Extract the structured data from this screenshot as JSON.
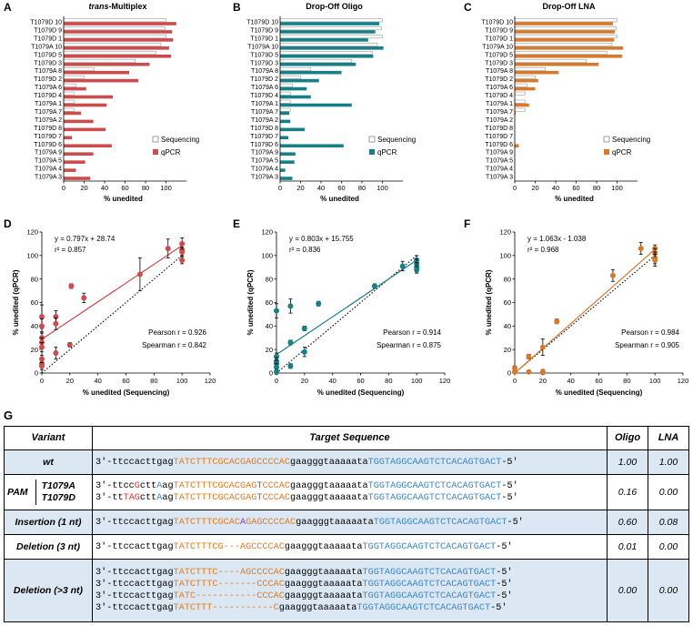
{
  "colors": {
    "multiplex": "#cc4b4b",
    "oligo": "#177f86",
    "lna": "#d7792c",
    "dotted": "#000000",
    "shade": "#dbe8f4"
  },
  "panels": {
    "A": {
      "letter": "A",
      "title_italic": "trans",
      "title_rest": "-Multiplex",
      "xlabel": "% unedited",
      "legend": [
        "Sequencing",
        "qPCR"
      ],
      "color_key": "multiplex"
    },
    "B": {
      "letter": "B",
      "title": "Drop-Off Oligo",
      "xlabel": "% unedited",
      "legend": [
        "Sequencing",
        "qPCR"
      ],
      "color_key": "oligo"
    },
    "C": {
      "letter": "C",
      "title": "Drop-Off LNA",
      "xlabel": "% unedited",
      "legend": [
        "Sequencing",
        "qPCR"
      ],
      "color_key": "lna"
    }
  },
  "chart_data": [
    {
      "type": "bar",
      "panel": "A",
      "title": "trans-Multiplex",
      "xlabel": "% unedited",
      "xlim": [
        0,
        120
      ],
      "xticks": [
        0,
        20,
        40,
        60,
        80,
        100
      ],
      "categories": [
        "T1079D 10",
        "T1079D 9",
        "T1079D 1",
        "T1079A 10",
        "T1079D 5",
        "T1079D 3",
        "T1079A 8",
        "T1079D 2",
        "T1079A 6",
        "T1079D 4",
        "T1079A 1",
        "T1079A 7",
        "T1079A 2",
        "T1079D 8",
        "T1079D 7",
        "T1079D 6",
        "T1079A 9",
        "T1079A 5",
        "T1079A 4",
        "T1079A 3"
      ],
      "series": [
        {
          "name": "Sequencing",
          "values": [
            100,
            99,
            100,
            95,
            90,
            70,
            30,
            20,
            12,
            10,
            10,
            10,
            0,
            0,
            0,
            0,
            0,
            0,
            0,
            0
          ]
        },
        {
          "name": "qPCR",
          "values": [
            110,
            106,
            107,
            103,
            105,
            84,
            64,
            73,
            22,
            48,
            42,
            17,
            29,
            41,
            8,
            47,
            29,
            21,
            12,
            26
          ]
        }
      ]
    },
    {
      "type": "bar",
      "panel": "B",
      "title": "Drop-Off Oligo",
      "xlabel": "% unedited",
      "xlim": [
        0,
        120
      ],
      "xticks": [
        0,
        20,
        40,
        60,
        80,
        100
      ],
      "categories": [
        "T1079D 10",
        "T1079D 9",
        "T1079D 1",
        "T1079A 10",
        "T1079D 5",
        "T1079D 3",
        "T1079A 8",
        "T1079D 2",
        "T1079A 6",
        "T1079D 4",
        "T1079A 1",
        "T1079A 7",
        "T1079A 2",
        "T1079D 8",
        "T1079D 7",
        "T1079D 6",
        "T1079A 9",
        "T1079A 5",
        "T1079A 4",
        "T1079A 3"
      ],
      "series": [
        {
          "name": "Sequencing",
          "values": [
            100,
            99,
            100,
            95,
            90,
            70,
            30,
            20,
            12,
            10,
            10,
            10,
            0,
            0,
            0,
            0,
            0,
            0,
            0,
            0
          ]
        },
        {
          "name": "qPCR",
          "values": [
            97,
            93,
            86,
            101,
            91,
            74,
            60,
            38,
            26,
            30,
            70,
            9,
            10,
            24,
            8,
            62,
            15,
            14,
            5,
            12
          ]
        }
      ]
    },
    {
      "type": "bar",
      "panel": "C",
      "title": "Drop-Off LNA",
      "xlabel": "% unedited",
      "xlim": [
        0,
        120
      ],
      "xticks": [
        0,
        20,
        40,
        60,
        80,
        100
      ],
      "categories": [
        "T1079D 10",
        "T1079D 9",
        "T1079D 1",
        "T1079A 10",
        "T1079D 5",
        "T1079D 3",
        "T1079A 8",
        "T1079D 2",
        "T1079A 6",
        "T1079D 4",
        "T1079A 1",
        "T1079A 7",
        "T1079A 2",
        "T1079D 8",
        "T1079D 7",
        "T1079D 6",
        "T1079A 9",
        "T1079A 5",
        "T1079A 4",
        "T1079A 3"
      ],
      "series": [
        {
          "name": "Sequencing",
          "values": [
            100,
            99,
            100,
            95,
            90,
            70,
            30,
            20,
            12,
            10,
            10,
            10,
            0,
            0,
            0,
            0,
            0,
            0,
            0,
            0
          ]
        },
        {
          "name": "qPCR",
          "values": [
            96,
            98,
            97,
            106,
            105,
            82,
            43,
            23,
            20,
            0,
            14,
            1,
            0,
            0,
            0,
            4,
            0,
            0,
            0,
            0
          ]
        }
      ]
    },
    {
      "type": "scatter",
      "panel": "D",
      "xlabel": "% unedited (Sequencing)",
      "ylabel": "% unedited (qPCR)",
      "xlim": [
        0,
        120
      ],
      "ylim": [
        0,
        120
      ],
      "xticks": [
        0,
        20,
        40,
        60,
        80,
        100,
        120
      ],
      "yticks": [
        0,
        20,
        40,
        60,
        80,
        100,
        120
      ],
      "points": [
        [
          0,
          48
        ],
        [
          0,
          40
        ],
        [
          0,
          30
        ],
        [
          0,
          26
        ],
        [
          0,
          22
        ],
        [
          0,
          8
        ],
        [
          0,
          12
        ],
        [
          0,
          6
        ],
        [
          10,
          48
        ],
        [
          10,
          42
        ],
        [
          10,
          17
        ],
        [
          20,
          24
        ],
        [
          21,
          74
        ],
        [
          30,
          64
        ],
        [
          70,
          84
        ],
        [
          90,
          106
        ],
        [
          100,
          105
        ],
        [
          100,
          110
        ],
        [
          100,
          103
        ],
        [
          100,
          96
        ]
      ],
      "errors": [
        [
          0,
          10
        ],
        [
          0,
          6
        ],
        [
          0,
          5
        ],
        [
          0,
          4
        ],
        [
          0,
          4
        ],
        [
          0,
          3
        ],
        [
          0,
          3
        ],
        [
          0,
          3
        ],
        [
          10,
          5
        ],
        [
          10,
          5
        ],
        [
          10,
          5
        ],
        [
          20,
          2
        ],
        [
          21,
          2
        ],
        [
          30,
          4
        ],
        [
          70,
          14
        ],
        [
          90,
          8
        ],
        [
          100,
          5
        ],
        [
          100,
          5
        ],
        [
          100,
          4
        ],
        [
          100,
          3
        ]
      ],
      "fit": {
        "slope": 0.797,
        "intercept": 28.74
      },
      "equation": "y = 0.797x + 28.74",
      "r2": "r² = 0.857",
      "pearson": "Pearson r = 0.926",
      "spearman": "Spearman r = 0.842"
    },
    {
      "type": "scatter",
      "panel": "E",
      "xlabel": "% unedited (Sequencing)",
      "ylabel": "% unedited (qPCR)",
      "xlim": [
        0,
        120
      ],
      "ylim": [
        0,
        120
      ],
      "xticks": [
        0,
        20,
        40,
        60,
        80,
        100,
        120
      ],
      "yticks": [
        0,
        20,
        40,
        60,
        80,
        100,
        120
      ],
      "points": [
        [
          0,
          53
        ],
        [
          0,
          14
        ],
        [
          0,
          10
        ],
        [
          0,
          8
        ],
        [
          0,
          5
        ],
        [
          0,
          1
        ],
        [
          10,
          57
        ],
        [
          10,
          26
        ],
        [
          10,
          6
        ],
        [
          20,
          38
        ],
        [
          20,
          18
        ],
        [
          30,
          59
        ],
        [
          70,
          74
        ],
        [
          90,
          91
        ],
        [
          100,
          96
        ],
        [
          100,
          93
        ],
        [
          100,
          90
        ],
        [
          100,
          88
        ]
      ],
      "errors": [
        [
          0,
          6
        ],
        [
          0,
          3
        ],
        [
          0,
          3
        ],
        [
          0,
          3
        ],
        [
          0,
          3
        ],
        [
          0,
          2
        ],
        [
          10,
          6
        ],
        [
          10,
          2
        ],
        [
          10,
          2
        ],
        [
          20,
          2
        ],
        [
          20,
          4
        ],
        [
          30,
          2
        ],
        [
          70,
          2
        ],
        [
          90,
          4
        ],
        [
          100,
          4
        ],
        [
          100,
          4
        ],
        [
          100,
          4
        ],
        [
          100,
          3
        ]
      ],
      "fit": {
        "slope": 0.803,
        "intercept": 15.755
      },
      "equation": "y = 0.803x + 15.755",
      "r2": "r² = 0.836",
      "pearson": "Pearson r = 0.914",
      "spearman": "Spearman r = 0.875"
    },
    {
      "type": "scatter",
      "panel": "F",
      "xlabel": "% unedited (Sequencing)",
      "ylabel": "% unedited (qPCR)",
      "xlim": [
        0,
        120
      ],
      "ylim": [
        0,
        120
      ],
      "xticks": [
        0,
        20,
        40,
        60,
        80,
        100,
        120
      ],
      "yticks": [
        0,
        20,
        40,
        60,
        80,
        100,
        120
      ],
      "points": [
        [
          0,
          4
        ],
        [
          0,
          1
        ],
        [
          10,
          14
        ],
        [
          10,
          1
        ],
        [
          20,
          22
        ],
        [
          20,
          1
        ],
        [
          30,
          44
        ],
        [
          70,
          83
        ],
        [
          90,
          106
        ],
        [
          100,
          106
        ],
        [
          100,
          102
        ],
        [
          100,
          98
        ],
        [
          100,
          96
        ]
      ],
      "errors": [
        [
          0,
          2
        ],
        [
          0,
          1
        ],
        [
          10,
          2
        ],
        [
          10,
          1
        ],
        [
          20,
          7
        ],
        [
          20,
          2
        ],
        [
          30,
          2
        ],
        [
          70,
          5
        ],
        [
          90,
          5
        ],
        [
          100,
          3
        ],
        [
          100,
          4
        ],
        [
          100,
          5
        ],
        [
          100,
          5
        ]
      ],
      "fit": {
        "slope": 1.063,
        "intercept": -1.038
      },
      "equation": "y = 1.063x - 1.038",
      "r2": "r² = 0.968",
      "pearson": "Pearson r = 0.984",
      "spearman": "Spearman r = 0.905"
    }
  ],
  "table": {
    "letter": "G",
    "headers": {
      "variant": "Variant",
      "target": "Target Sequence",
      "oligo": "Oligo",
      "lna": "LNA"
    },
    "wt": {
      "label": "wt",
      "oligo": "1.00",
      "lna": "1.00",
      "parts": [
        "3′-ttccacttgag",
        "TATCTTTCGCACGAGCCCCAC",
        "gaagggtaaaaata",
        "TGGTAGGCAAGTCTCACAGTGACT",
        "-5′"
      ]
    },
    "pam": {
      "label": "PAM",
      "sub1": "T1079A",
      "sub2": "T1079D",
      "oligo": "0.16",
      "lna": "0.00",
      "line1": [
        "3′-ttcc",
        "G",
        "ctt",
        "A",
        "ag",
        "TATCTTTCGCACGAG",
        "T",
        "CCCAC",
        "gaagggtaaaaata",
        "TGGTAGGCAAGTCTCACAGTGACT",
        "-5′"
      ],
      "line2": [
        "3′-tt",
        "TAG",
        "ctt",
        "A",
        "ag",
        "TATCTTTCGCACGAG",
        "T",
        "CCCAC",
        "gaagggtaaaaata",
        "TGGTAGGCAAGTCTCACAGTGACT",
        "-5′"
      ]
    },
    "ins": {
      "label": "Insertion (1 nt)",
      "oligo": "0.60",
      "lna": "0.08",
      "parts": [
        "3′-ttccacttgag",
        "TATCTTTCGCAC",
        "A",
        "GAGCCCCAC",
        "gaagggtaaaaata",
        "TGGTAGGCAAGTCTCACAGTGACT",
        "-5′"
      ]
    },
    "del3": {
      "label": "Deletion (3 nt)",
      "oligo": "0.01",
      "lna": "0.00",
      "parts": [
        "3′-ttccacttgag",
        "TATCTTTCG---AGCCCCAC",
        "gaagggtaaaaata",
        "TGGTAGGCAAGTCTCACAGTGACT",
        "-5′"
      ]
    },
    "delmore": {
      "label": "Deletion (>3 nt)",
      "oligo": "0.00",
      "lna": "0.00",
      "lines": [
        [
          "3′-ttccacttgag",
          "TATCTTTC----AGCCCCAC",
          "gaagggtaaaaata",
          "TGGTAGGCAAGTCTCACAGTGACT",
          "-5′"
        ],
        [
          "3′-ttccacttgag",
          "TATCTTTC-------CCCAC",
          "gaagggtaaaaata",
          "TGGTAGGCAAGTCTCACAGTGACT",
          "-5′"
        ],
        [
          "3′-ttccacttgag",
          "TATC-----------CCCAC",
          "gaagggtaaaaata",
          "TGGTAGGCAAGTCTCACAGTGACT",
          "-5′"
        ],
        [
          "3′-ttccacttgag",
          "TATCTTT-----------C",
          "gaagggtaaaaata",
          "TGGTAGGCAAGTCTCACAGTGACT",
          "-5′"
        ]
      ]
    }
  }
}
